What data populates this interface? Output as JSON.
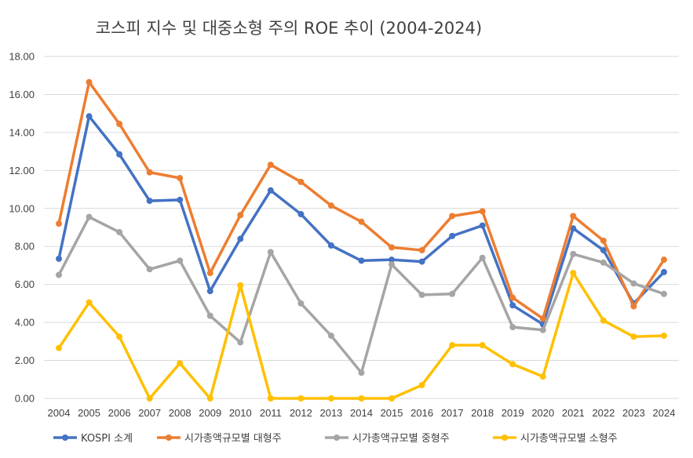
{
  "chart_data": {
    "type": "line",
    "title": "코스피 지수 및 대중소형 주의 ROE 추이 (2004-2024)",
    "xlabel": "",
    "ylabel": "",
    "ylim": [
      0,
      18
    ],
    "yticks": [
      "0.00",
      "2.00",
      "4.00",
      "6.00",
      "8.00",
      "10.00",
      "12.00",
      "14.00",
      "16.00",
      "18.00"
    ],
    "categories": [
      "2004",
      "2005",
      "2006",
      "2007",
      "2008",
      "2009",
      "2010",
      "2011",
      "2012",
      "2013",
      "2014",
      "2015",
      "2016",
      "2017",
      "2018",
      "2019",
      "2020",
      "2021",
      "2022",
      "2023",
      "2024"
    ],
    "grid": true,
    "legend_position": "bottom",
    "series": [
      {
        "name": "KOSPI 소계",
        "color": "#4472c4",
        "values": [
          7.35,
          14.85,
          12.85,
          10.4,
          10.45,
          5.65,
          8.4,
          10.95,
          9.7,
          8.05,
          7.25,
          7.3,
          7.2,
          8.55,
          9.1,
          4.9,
          3.9,
          8.95,
          7.8,
          5.0,
          6.65
        ]
      },
      {
        "name": "시가총액규모별 대형주",
        "color": "#ed7d31",
        "values": [
          9.2,
          16.65,
          14.45,
          11.9,
          11.6,
          6.6,
          9.65,
          12.3,
          11.4,
          10.15,
          9.3,
          7.95,
          7.8,
          9.6,
          9.85,
          5.3,
          4.2,
          9.6,
          8.3,
          4.85,
          7.3
        ]
      },
      {
        "name": "시가총액규모별 중형주",
        "color": "#a5a5a5",
        "values": [
          6.5,
          9.55,
          8.75,
          6.8,
          7.25,
          4.35,
          2.95,
          7.7,
          5.0,
          3.3,
          1.35,
          7.05,
          5.45,
          5.5,
          7.4,
          3.75,
          3.6,
          7.6,
          7.15,
          6.05,
          5.5
        ]
      },
      {
        "name": "시가총액규모별 소형주",
        "color": "#ffc000",
        "values": [
          2.65,
          5.05,
          3.25,
          0.0,
          1.85,
          0.0,
          5.95,
          0.0,
          0.0,
          0.0,
          0.0,
          0.0,
          0.7,
          2.8,
          2.8,
          1.8,
          1.15,
          6.6,
          4.1,
          3.25,
          3.3
        ]
      }
    ]
  }
}
